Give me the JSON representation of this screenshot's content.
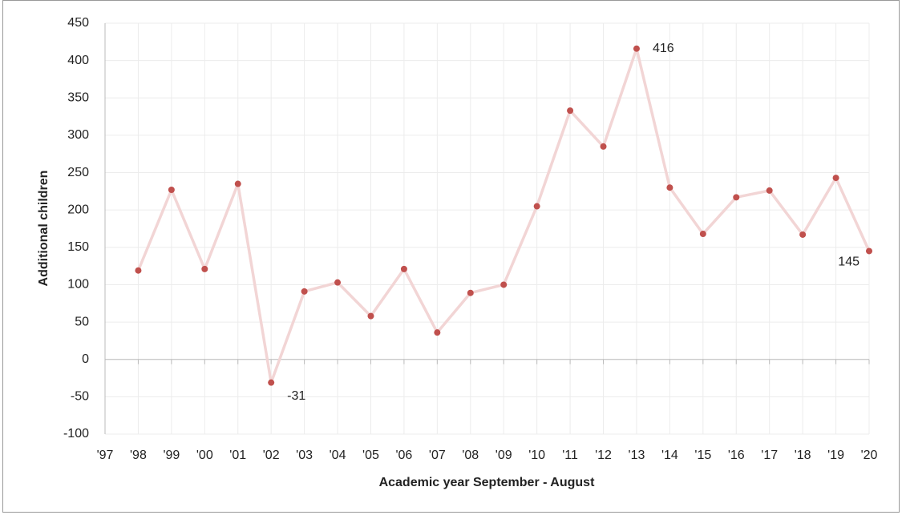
{
  "chart_data": {
    "type": "line",
    "x_label": "Academic year September - August",
    "y_label": "Additional children",
    "categories": [
      "'97",
      "'98",
      "'99",
      "'00",
      "'01",
      "'02",
      "'03",
      "'04",
      "'05",
      "'06",
      "'07",
      "'08",
      "'09",
      "'10",
      "'11",
      "'12",
      "'13",
      "'14",
      "'15",
      "'16",
      "'17",
      "'18",
      "'19",
      "'20"
    ],
    "series": [
      {
        "name": "Additional children",
        "color": "#c0504d",
        "line_color": "#f2d5d5",
        "values": [
          null,
          119,
          227,
          121,
          235,
          -31,
          91,
          103,
          58,
          121,
          36,
          89,
          100,
          205,
          333,
          285,
          416,
          230,
          168,
          217,
          226,
          167,
          243,
          145
        ],
        "value_labels": [
          null,
          null,
          null,
          null,
          null,
          "-31",
          null,
          null,
          null,
          null,
          null,
          null,
          null,
          null,
          null,
          null,
          "416",
          null,
          null,
          null,
          null,
          null,
          null,
          "145"
        ]
      }
    ],
    "ylim": [
      -100,
      450
    ],
    "yticks": [
      -100,
      -50,
      0,
      50,
      100,
      150,
      200,
      250,
      300,
      350,
      400,
      450
    ],
    "grid": true
  }
}
